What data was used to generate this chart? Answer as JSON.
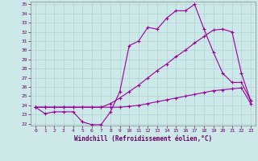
{
  "xlabel": "Windchill (Refroidissement éolien,°C)",
  "bg_color": "#cce8e8",
  "line_color": "#990099",
  "xlim": [
    -0.5,
    23.5
  ],
  "ylim": [
    21.8,
    35.3
  ],
  "yticks": [
    22,
    23,
    24,
    25,
    26,
    27,
    28,
    29,
    30,
    31,
    32,
    33,
    34,
    35
  ],
  "xticks": [
    0,
    1,
    2,
    3,
    4,
    5,
    6,
    7,
    8,
    9,
    10,
    11,
    12,
    13,
    14,
    15,
    16,
    17,
    18,
    19,
    20,
    21,
    22,
    23
  ],
  "line1_x": [
    0,
    1,
    2,
    3,
    4,
    5,
    6,
    7,
    8,
    9,
    10,
    11,
    12,
    13,
    14,
    15,
    16,
    17,
    18,
    19,
    20,
    21,
    22,
    23
  ],
  "line1_y": [
    23.8,
    23.1,
    23.3,
    23.3,
    23.3,
    22.2,
    21.9,
    21.9,
    23.3,
    25.5,
    30.5,
    31.0,
    32.5,
    32.3,
    33.5,
    34.3,
    34.3,
    35.0,
    32.3,
    29.8,
    27.5,
    26.5,
    26.5,
    24.5
  ],
  "line2_x": [
    0,
    1,
    2,
    3,
    4,
    5,
    6,
    7,
    8,
    9,
    10,
    11,
    12,
    13,
    14,
    15,
    16,
    17,
    18,
    19,
    20,
    21,
    22,
    23
  ],
  "line2_y": [
    23.8,
    23.8,
    23.8,
    23.8,
    23.8,
    23.8,
    23.8,
    23.8,
    24.2,
    24.8,
    25.5,
    26.2,
    27.0,
    27.8,
    28.5,
    29.3,
    30.0,
    30.8,
    31.5,
    32.2,
    32.3,
    32.0,
    27.5,
    24.5
  ],
  "line3_x": [
    0,
    1,
    2,
    3,
    4,
    5,
    6,
    7,
    8,
    9,
    10,
    11,
    12,
    13,
    14,
    15,
    16,
    17,
    18,
    19,
    20,
    21,
    22,
    23
  ],
  "line3_y": [
    23.8,
    23.8,
    23.8,
    23.8,
    23.8,
    23.8,
    23.8,
    23.8,
    23.8,
    23.8,
    23.9,
    24.0,
    24.2,
    24.4,
    24.6,
    24.8,
    25.0,
    25.2,
    25.4,
    25.6,
    25.7,
    25.8,
    25.9,
    24.2
  ]
}
